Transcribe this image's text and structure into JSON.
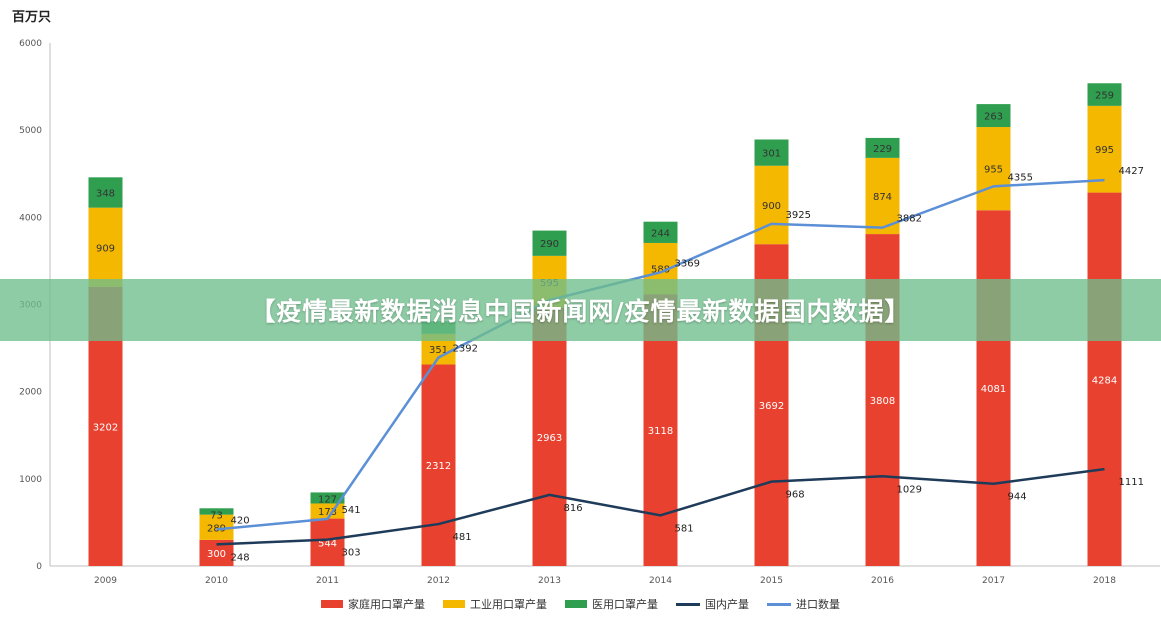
{
  "unit_label": "百万只",
  "banner_text": "【疫情最新数据消息中国新闻网/疫情最新数据国内数据】",
  "chart_data": {
    "type": "bar",
    "stacked": true,
    "categories": [
      "2009",
      "2010",
      "2011",
      "2012",
      "2013",
      "2014",
      "2015",
      "2016",
      "2017",
      "2018"
    ],
    "ylim": [
      0,
      6000
    ],
    "yticks": [
      0,
      1000,
      2000,
      3000,
      4000,
      5000,
      6000
    ],
    "grid": false,
    "legend_position": "bottom",
    "series": [
      {
        "name": "家庭用口罩产量",
        "kind": "bar",
        "color": "#e8412f",
        "values": [
          3202,
          300,
          544,
          2312,
          2963,
          3118,
          3692,
          3808,
          4081,
          4284
        ],
        "labels": [
          "3202",
          "300",
          "544",
          "2312",
          "2963",
          "3118",
          "3692",
          "3808",
          "4081",
          "4284"
        ]
      },
      {
        "name": "工业用口罩产量",
        "kind": "bar",
        "color": "#f5b800",
        "values": [
          909,
          289,
          173,
          351,
          595,
          588,
          900,
          874,
          955,
          995
        ],
        "labels": [
          "909",
          "289",
          "173",
          "351",
          "595",
          "588",
          "900",
          "874",
          "955",
          "995"
        ]
      },
      {
        "name": "医用口罩产量",
        "kind": "bar",
        "color": "#2f9e4f",
        "values": [
          348,
          73,
          127,
          145,
          290,
          244,
          301,
          229,
          263,
          259
        ],
        "labels": [
          "348",
          "73",
          "127",
          "",
          "290",
          "244",
          "301",
          "229",
          "263",
          "259"
        ]
      },
      {
        "name": "国内产量",
        "kind": "line",
        "color": "#1f3b5a",
        "values": [
          null,
          248,
          303,
          481,
          816,
          581,
          968,
          1029,
          944,
          1111
        ],
        "labels": [
          "",
          "248",
          "303",
          "481",
          "816",
          "581",
          "968",
          "1029",
          "944",
          "1111"
        ]
      },
      {
        "name": "进口数量",
        "kind": "line",
        "color": "#5b8fd6",
        "values": [
          null,
          420,
          541,
          2392,
          3050,
          3369,
          3925,
          3882,
          4355,
          4427
        ],
        "labels": [
          "",
          "420",
          "541",
          "2392",
          "",
          "3369",
          "3925",
          "3882",
          "4355",
          "4427"
        ]
      }
    ]
  }
}
